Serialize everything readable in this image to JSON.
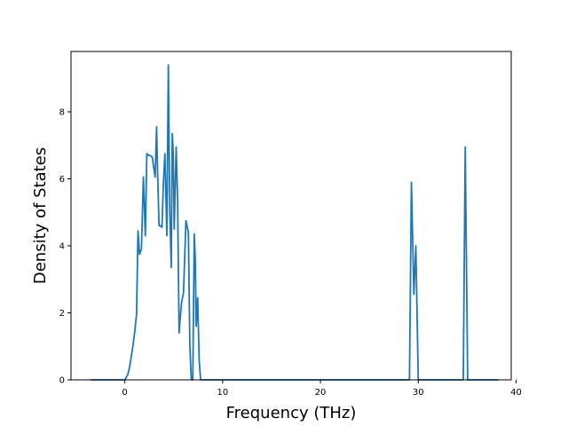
{
  "chart_data": {
    "type": "line",
    "title": "",
    "xlabel": "Frequency (THz)",
    "ylabel": "Density of States",
    "xlim": [
      -5.5,
      39.5
    ],
    "ylim": [
      0,
      9.8
    ],
    "xticks": [
      0,
      10,
      20,
      30,
      40
    ],
    "yticks": [
      0,
      2,
      4,
      6,
      8
    ],
    "grid": false,
    "legend": "none",
    "series": [
      {
        "color": "#1f77b4",
        "x": [
          -3.5,
          0.0,
          0.3,
          0.5,
          0.8,
          1.0,
          1.2,
          1.35,
          1.5,
          1.7,
          1.9,
          2.1,
          2.25,
          2.4,
          2.55,
          2.8,
          3.1,
          3.25,
          3.35,
          3.5,
          3.65,
          3.8,
          3.95,
          4.1,
          4.3,
          4.45,
          4.6,
          4.75,
          4.85,
          4.95,
          5.05,
          5.25,
          5.4,
          5.55,
          5.65,
          5.8,
          6.0,
          6.25,
          6.5,
          6.65,
          6.8,
          6.95,
          7.1,
          7.2,
          7.3,
          7.45,
          7.6,
          7.75,
          7.85,
          7.95,
          8.1,
          8.3,
          8.6,
          9.0,
          28.8,
          29.1,
          29.3,
          29.55,
          29.75,
          30.0,
          30.2,
          34.4,
          34.6,
          34.8,
          35.05,
          35.2,
          38.2
        ],
        "y": [
          0.0,
          0.0,
          0.15,
          0.4,
          0.95,
          1.4,
          1.95,
          4.45,
          3.75,
          3.9,
          6.05,
          4.3,
          6.75,
          6.7,
          6.7,
          6.65,
          6.05,
          7.55,
          6.2,
          4.6,
          4.6,
          4.55,
          5.9,
          6.75,
          4.3,
          9.4,
          5.0,
          3.35,
          7.35,
          6.8,
          4.5,
          6.95,
          5.3,
          1.4,
          1.8,
          2.3,
          2.6,
          4.75,
          4.4,
          1.0,
          0.0,
          0.0,
          4.35,
          3.6,
          1.6,
          2.45,
          0.6,
          0.0,
          0.0,
          0.0,
          0.0,
          0.0,
          0.0,
          0.0,
          0.0,
          0.0,
          5.9,
          2.55,
          4.0,
          0.0,
          0.0,
          0.0,
          0.0,
          6.95,
          0.0,
          0.0,
          0.0
        ]
      }
    ]
  }
}
